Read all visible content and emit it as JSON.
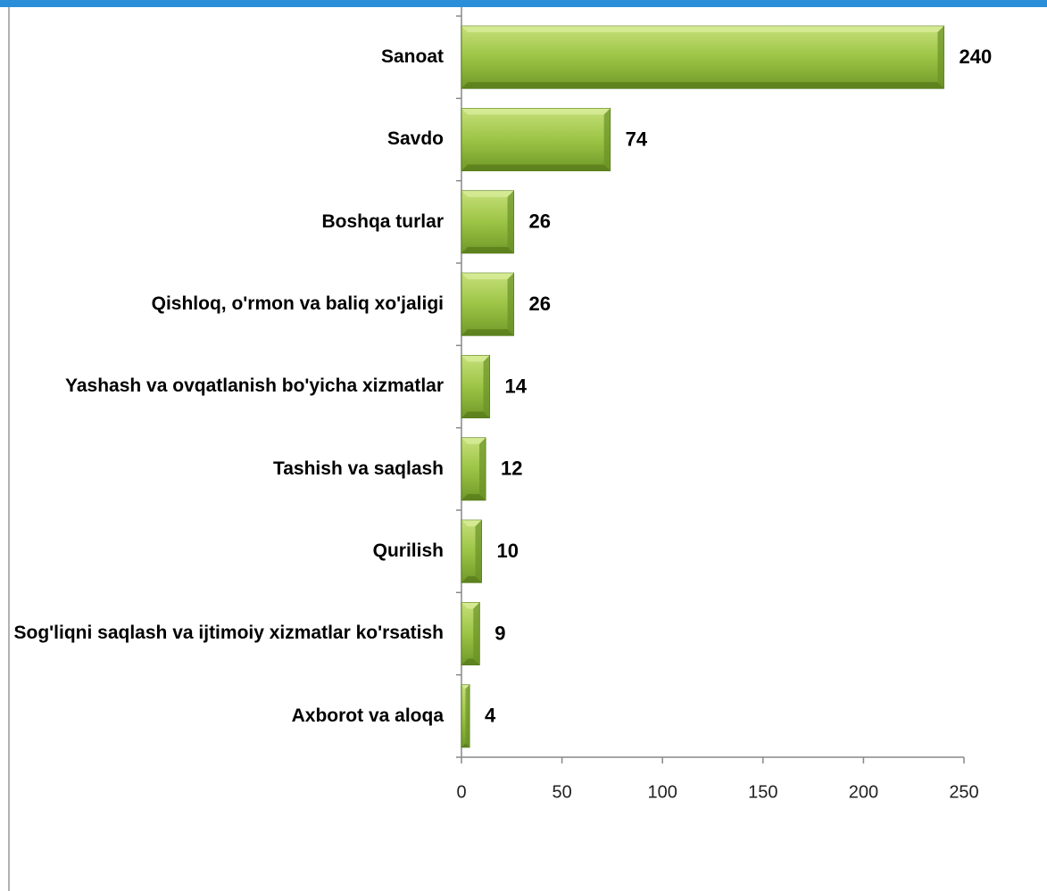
{
  "chart_data": {
    "type": "bar",
    "orientation": "horizontal",
    "categories": [
      "Sanoat",
      "Savdo",
      "Boshqa turlar",
      "Qishloq, o'rmon va baliq xo'jaligi",
      "Yashash va ovqatlanish bo'yicha xizmatlar",
      "Tashish va saqlash",
      "Qurilish",
      "Sog'liqni saqlash va ijtimoiy xizmatlar ko'rsatish",
      "Axborot va aloqa"
    ],
    "values": [
      240,
      74,
      26,
      26,
      14,
      12,
      10,
      9,
      4
    ],
    "color": "#8fba3a",
    "xlim": [
      0,
      250
    ],
    "xticks": [
      0,
      50,
      100,
      150,
      200,
      250
    ],
    "grid": false
  }
}
